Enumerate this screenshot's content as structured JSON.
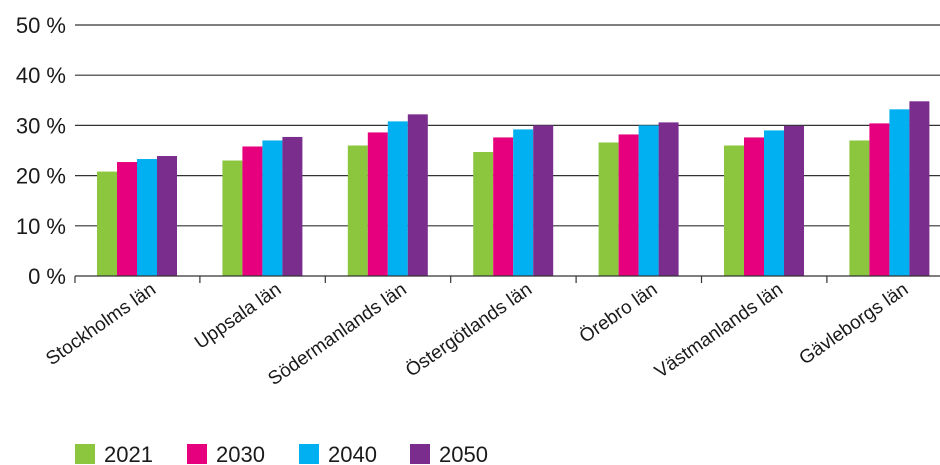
{
  "chart_data": {
    "type": "bar",
    "title": "",
    "xlabel": "",
    "ylabel": "",
    "ylim": [
      0,
      50
    ],
    "yticks": [
      0,
      10,
      20,
      30,
      40,
      50
    ],
    "y_unit": " %",
    "grid": true,
    "legend_position": "bottom-left",
    "categories": [
      "Stockholms län",
      "Uppsala län",
      "Södermanlands län",
      "Östergötlands län",
      "Örebro län",
      "Västmanlands län",
      "Gävleborgs län"
    ],
    "series": [
      {
        "name": "2021",
        "color": "#8cc63f",
        "values": [
          20.8,
          23.0,
          26.0,
          24.7,
          26.6,
          26.0,
          27.0
        ]
      },
      {
        "name": "2030",
        "color": "#e6007e",
        "values": [
          22.7,
          25.8,
          28.6,
          27.6,
          28.2,
          27.6,
          30.4
        ]
      },
      {
        "name": "2040",
        "color": "#00b0f0",
        "values": [
          23.3,
          27.0,
          30.8,
          29.2,
          30.0,
          29.0,
          33.2
        ]
      },
      {
        "name": "2050",
        "color": "#7b2d8e",
        "values": [
          23.9,
          27.7,
          32.2,
          30.0,
          30.6,
          29.9,
          34.8
        ]
      }
    ]
  }
}
